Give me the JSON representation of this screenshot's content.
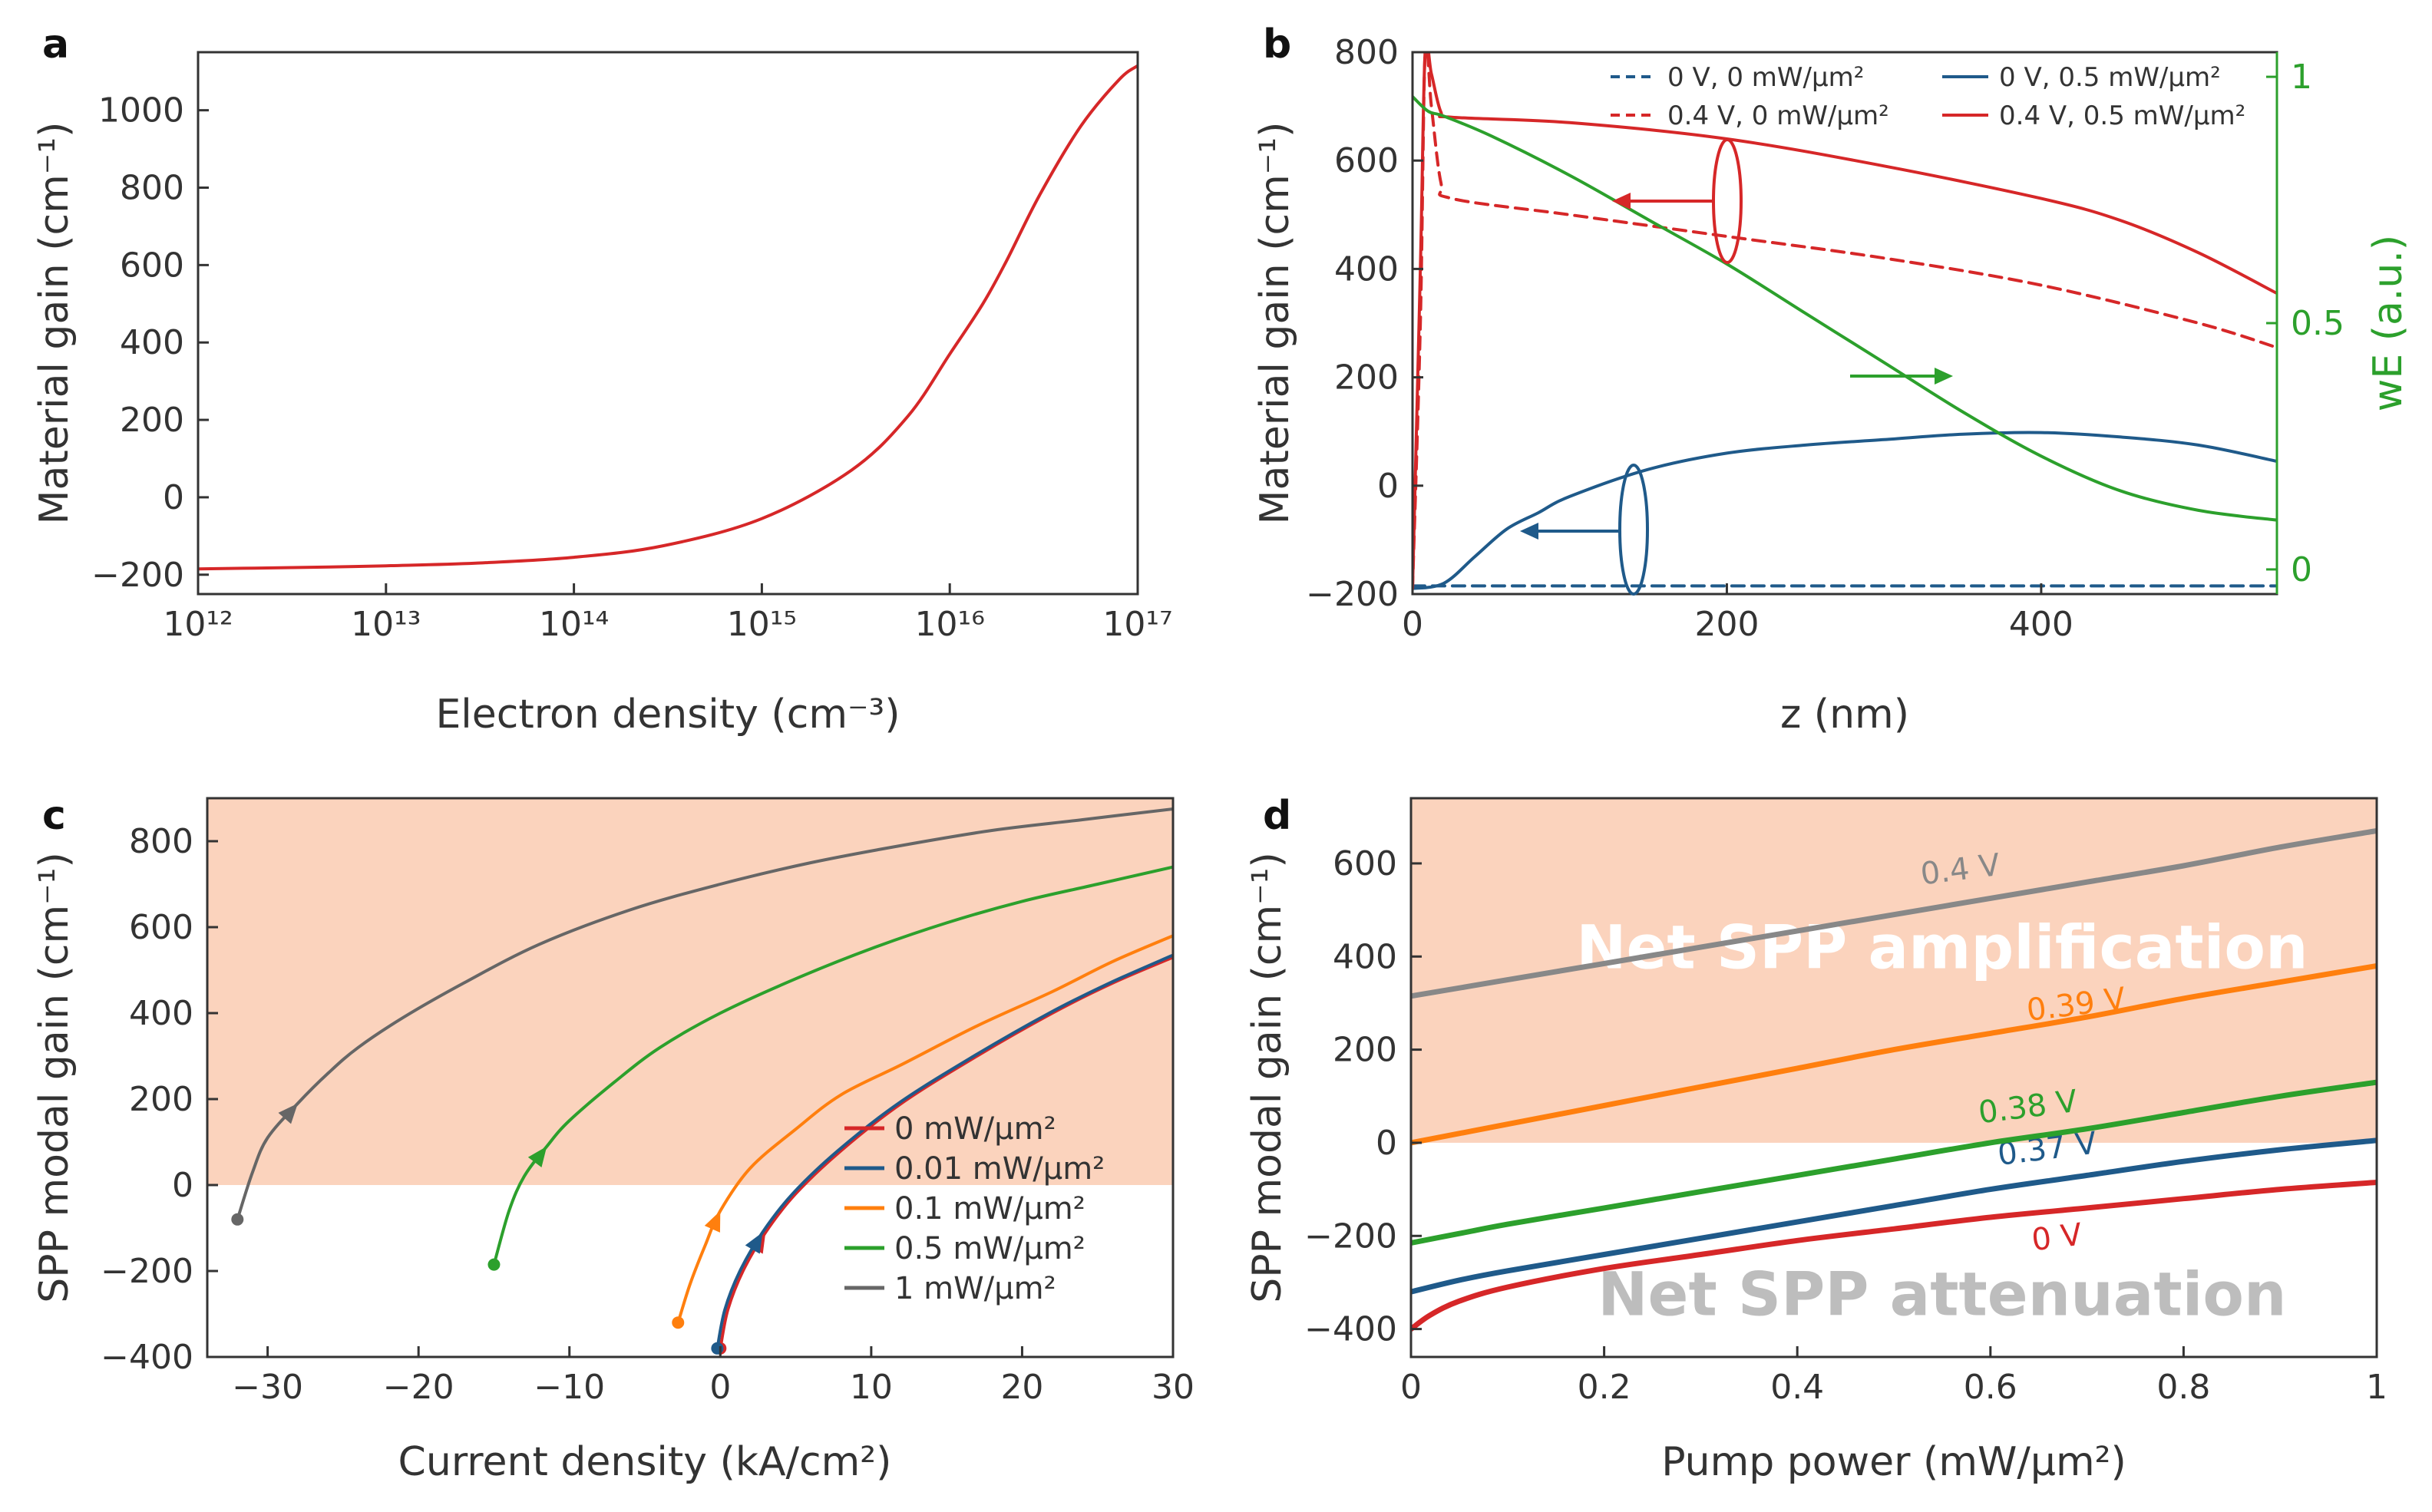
{
  "chart_data": [
    {
      "panel": "a",
      "type": "line",
      "xscale": "log",
      "xlabel": "Electron density (cm⁻³)",
      "ylabel": "Material gain (cm⁻¹)",
      "xlim": [
        1000000000000.0,
        1e+17
      ],
      "ylim": [
        -250,
        1150
      ],
      "xtick_labels": [
        "10¹²",
        "10¹³",
        "10¹⁴",
        "10¹⁵",
        "10¹⁶",
        "10¹⁷"
      ],
      "ytick_labels": [
        "−200",
        "0",
        "200",
        "400",
        "600",
        "800",
        "1000"
      ],
      "series": [
        {
          "name": "gain",
          "color": "#d62728",
          "x": [
            1000000000000.0,
            2000000000000.0,
            5000000000000.0,
            10000000000000.0,
            30000000000000.0,
            100000000000000.0,
            300000000000000.0,
            1000000000000000.0,
            3000000000000000.0,
            6000000000000000.0,
            1e+16,
            1.5e+16,
            2e+16,
            3e+16,
            5e+16,
            8e+16,
            1e+17
          ],
          "y": [
            -185,
            -183,
            -180,
            -177,
            -170,
            -155,
            -125,
            -55,
            70,
            210,
            370,
            500,
            610,
            780,
            960,
            1080,
            1115
          ]
        }
      ]
    },
    {
      "panel": "b",
      "type": "line",
      "xlabel": "z (nm)",
      "ylabel": "Material gain (cm⁻¹)",
      "ylabel_right": "wE (a.u.)",
      "xlim": [
        0,
        550
      ],
      "ylim": [
        -200,
        800
      ],
      "ylim_right": [
        -0.05,
        1.05
      ],
      "xtick_labels": [
        "0",
        "200",
        "400"
      ],
      "ytick_labels": [
        "−200",
        "0",
        "200",
        "400",
        "600",
        "800"
      ],
      "ytick_labels_right": [
        "0",
        "0.5",
        "1"
      ],
      "legend": [
        "0 V,    0 mW/μm²",
        "0.4 V, 0 mW/μm²",
        "0 V,    0.5 mW/μm²",
        "0.4 V, 0.5 mW/μm²"
      ],
      "series": [
        {
          "name": "0 V, 0 mW/μm²",
          "color": "#1f5a8a",
          "dashed": true,
          "x": [
            0,
            550
          ],
          "y": [
            -185,
            -185
          ]
        },
        {
          "name": "0.4 V, 0 mW/μm²",
          "color": "#d62728",
          "dashed": true,
          "x": [
            0,
            5,
            8,
            12,
            18,
            25,
            100,
            200,
            300,
            400,
            500,
            550
          ],
          "y": [
            -190,
            300,
            800,
            700,
            560,
            530,
            500,
            460,
            420,
            370,
            300,
            255
          ]
        },
        {
          "name": "0 V, 0.5 mW/μm²",
          "color": "#1f5a8a",
          "dashed": false,
          "x": [
            0,
            20,
            40,
            60,
            80,
            100,
            150,
            200,
            250,
            300,
            350,
            400,
            450,
            500,
            550
          ],
          "y": [
            -190,
            -180,
            -130,
            -80,
            -50,
            -20,
            30,
            60,
            75,
            85,
            95,
            98,
            90,
            75,
            45
          ]
        },
        {
          "name": "0.4 V, 0.5 mW/μm²",
          "color": "#d62728",
          "dashed": false,
          "x": [
            0,
            5,
            8,
            12,
            18,
            25,
            100,
            200,
            300,
            400,
            450,
            500,
            550
          ],
          "y": [
            -190,
            400,
            800,
            760,
            690,
            680,
            670,
            640,
            590,
            530,
            490,
            430,
            355
          ]
        },
        {
          "name": "wE",
          "color": "#2ca02c",
          "axis": "right",
          "x": [
            0,
            10,
            20,
            50,
            100,
            150,
            200,
            250,
            300,
            350,
            400,
            450,
            500,
            550
          ],
          "y": [
            0.96,
            0.93,
            0.92,
            0.88,
            0.8,
            0.71,
            0.62,
            0.52,
            0.42,
            0.32,
            0.23,
            0.16,
            0.12,
            0.1
          ]
        }
      ]
    },
    {
      "panel": "c",
      "type": "line",
      "xlabel": "Current density (kA/cm²)",
      "ylabel": "SPP modal gain (cm⁻¹)",
      "xlim": [
        -34,
        30
      ],
      "ylim": [
        -400,
        900
      ],
      "xtick_labels": [
        "−30",
        "−20",
        "−10",
        "0",
        "10",
        "20",
        "30"
      ],
      "ytick_labels": [
        "−400",
        "−200",
        "0",
        "200",
        "400",
        "600",
        "800"
      ],
      "shaded_region": "net gain > 0",
      "legend": [
        "0 mW/μm²",
        "0.01 mW/μm²",
        "0.1 mW/μm²",
        "0.5 mW/μm²",
        "1 mW/μm²"
      ],
      "series": [
        {
          "name": "0 mW/μm²",
          "color": "#d62728",
          "x": [
            0,
            0.5,
            1.5,
            3,
            5,
            8,
            12,
            17,
            22,
            26,
            30
          ],
          "y": [
            -380,
            -290,
            -200,
            -110,
            -20,
            80,
            190,
            300,
            400,
            470,
            530
          ]
        },
        {
          "name": "0.01 mW/μm²",
          "color": "#1f5a8a",
          "x": [
            -0.2,
            0.3,
            1.3,
            2.8,
            4.8,
            7.8,
            11.8,
            16.8,
            21.8,
            25.8,
            30
          ],
          "y": [
            -380,
            -290,
            -200,
            -110,
            -20,
            80,
            190,
            300,
            400,
            470,
            535
          ]
        },
        {
          "name": "0.1 mW/μm²",
          "color": "#ff7f0e",
          "x": [
            -2.8,
            -2,
            -1,
            0,
            2,
            5,
            8,
            12,
            17,
            22,
            26,
            30
          ],
          "y": [
            -320,
            -230,
            -140,
            -60,
            40,
            130,
            210,
            280,
            370,
            450,
            520,
            580
          ]
        },
        {
          "name": "0.5 mW/μm²",
          "color": "#2ca02c",
          "x": [
            -15,
            -14,
            -13,
            -11.5,
            -10,
            -7,
            -4,
            0,
            5,
            10,
            15,
            20,
            25,
            30
          ],
          "y": [
            -185,
            -60,
            20,
            90,
            150,
            240,
            320,
            400,
            480,
            550,
            610,
            660,
            700,
            740
          ]
        },
        {
          "name": "1 mW/μm²",
          "color": "#666666",
          "x": [
            -32,
            -31,
            -30,
            -28,
            -26,
            -24,
            -21,
            -17,
            -12,
            -6,
            0,
            6,
            12,
            18,
            24,
            30
          ],
          "y": [
            -80,
            30,
            110,
            190,
            260,
            320,
            390,
            470,
            560,
            640,
            700,
            750,
            790,
            825,
            850,
            875
          ]
        }
      ]
    },
    {
      "panel": "d",
      "type": "line",
      "xlabel": "Pump power (mW/μm²)",
      "ylabel": "SPP modal gain (cm⁻¹)",
      "xlim": [
        0,
        1
      ],
      "ylim": [
        -460,
        740
      ],
      "xtick_labels": [
        "0",
        "0.2",
        "0.4",
        "0.6",
        "0.8",
        "1"
      ],
      "ytick_labels": [
        "−400",
        "−200",
        "0",
        "200",
        "400",
        "600"
      ],
      "region_labels": [
        "Net SPP amplification",
        "Net SPP attenuation"
      ],
      "series": [
        {
          "name": "0 V",
          "color": "#d62728",
          "x": [
            0,
            0.02,
            0.05,
            0.1,
            0.2,
            0.3,
            0.4,
            0.5,
            0.6,
            0.7,
            0.8,
            0.9,
            1.0
          ],
          "y": [
            -400,
            -370,
            -340,
            -310,
            -270,
            -240,
            -210,
            -185,
            -160,
            -140,
            -120,
            -100,
            -85
          ]
        },
        {
          "name": "0.37 V",
          "color": "#1f5a8a",
          "x": [
            0,
            0.05,
            0.1,
            0.2,
            0.3,
            0.4,
            0.5,
            0.6,
            0.7,
            0.8,
            0.9,
            1.0
          ],
          "y": [
            -320,
            -295,
            -275,
            -240,
            -205,
            -170,
            -135,
            -100,
            -70,
            -40,
            -15,
            5
          ]
        },
        {
          "name": "0.38 V",
          "color": "#2ca02c",
          "x": [
            0,
            0.05,
            0.1,
            0.2,
            0.3,
            0.4,
            0.5,
            0.6,
            0.7,
            0.8,
            0.9,
            1.0
          ],
          "y": [
            -215,
            -195,
            -175,
            -140,
            -105,
            -70,
            -35,
            0,
            30,
            65,
            100,
            130
          ]
        },
        {
          "name": "0.39 V",
          "color": "#ff7f0e",
          "x": [
            0,
            0.1,
            0.2,
            0.3,
            0.4,
            0.5,
            0.6,
            0.7,
            0.8,
            0.9,
            1.0
          ],
          "y": [
            0,
            40,
            80,
            120,
            160,
            200,
            235,
            270,
            310,
            345,
            380
          ]
        },
        {
          "name": "0.4 V",
          "color": "#888888",
          "x": [
            0,
            0.1,
            0.2,
            0.3,
            0.4,
            0.5,
            0.6,
            0.7,
            0.8,
            0.9,
            1.0
          ],
          "y": [
            315,
            350,
            385,
            420,
            455,
            490,
            525,
            560,
            595,
            635,
            670
          ]
        }
      ]
    }
  ]
}
